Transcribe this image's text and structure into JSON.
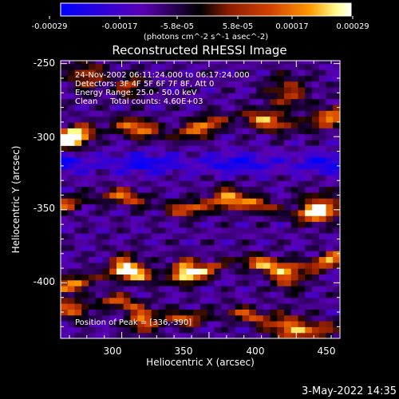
{
  "chart_data": {
    "type": "heatmap",
    "title": "Reconstructed RHESSI Image",
    "xlabel": "Heliocentric X (arcsec)",
    "ylabel": "Heliocentric Y (arcsec)",
    "xlim": [
      265,
      425
    ],
    "ylim": [
      -438,
      -248
    ],
    "x_ticks": [
      "300",
      "350",
      "400",
      "450"
    ],
    "y_ticks": [
      "-250",
      "-300",
      "-350",
      "-400"
    ],
    "colorbar": {
      "tick_labels": [
        "-0.00029",
        "-0.00017",
        "-5.8e-05",
        "5.8e-05",
        "0.00017",
        "0.00029"
      ],
      "range": [
        -0.00029,
        0.00029
      ],
      "units": "(photons cm^-2 s^-1 asec^-2)",
      "colormap": [
        "#0000ff",
        "#5a00b4",
        "#000000",
        "#8c1c00",
        "#d24000",
        "#ff9a00",
        "#ffff8c",
        "#ffffff"
      ]
    },
    "annotations": {
      "time": "24-Nov-2002 06:11:24.000 to 06:17:24.000",
      "detectors": "Detectors: 3F 4F 5F 6F 7F 8F, Att 0",
      "energy": "Energy Range: 25.0 - 50.0 keV",
      "clean": "Clean     Total counts: 4.60E+03",
      "peak": "Position of Peak = [336,-390]"
    },
    "peak": {
      "x": 336,
      "y": -390
    },
    "grid": false
  },
  "footer": {
    "date": "3-May-2022 14:35"
  },
  "colors": {
    "background": "#000000",
    "text": "#ffffff"
  }
}
